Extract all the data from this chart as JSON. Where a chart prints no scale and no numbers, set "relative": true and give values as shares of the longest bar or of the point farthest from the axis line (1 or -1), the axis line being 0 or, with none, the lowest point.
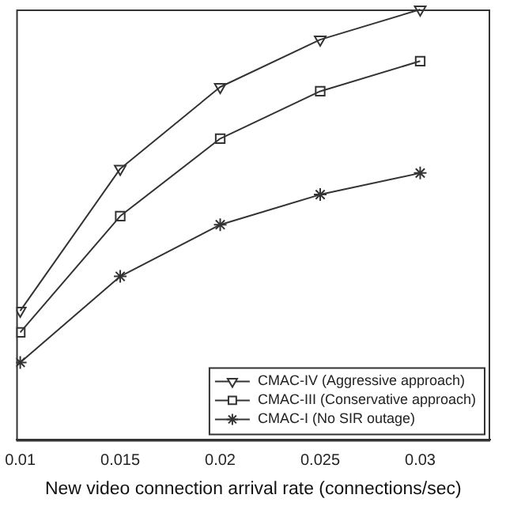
{
  "chart_data": {
    "type": "line",
    "xlabel": "New video connection arrival rate (connections/sec)",
    "relative": true,
    "x": [
      0.01,
      0.015,
      0.02,
      0.025,
      0.03
    ],
    "xlim": [
      0.0098,
      0.0335
    ],
    "xticks": [
      0.01,
      0.015,
      0.02,
      0.025,
      0.03
    ],
    "tick_labels": "x",
    "grid": false,
    "legend": "bottom right",
    "line_style": "solid",
    "series": [
      {
        "name": "CMAC-IV (Aggressive approach)",
        "color": "#333333",
        "marker": "triangle",
        "values": [
          0.3,
          0.63,
          0.82,
          0.93,
          1
        ]
      },
      {
        "name": "CMAC-III (Conservative approach)",
        "color": "#333333",
        "marker": "square",
        "values": [
          0.25,
          0.52,
          0.7,
          0.81,
          0.88
        ]
      },
      {
        "name": "CMAC-I (No SIR outage)",
        "color": "#333333",
        "marker": "cross",
        "values": [
          0.18,
          0.38,
          0.5,
          0.57,
          0.62
        ]
      }
    ]
  }
}
